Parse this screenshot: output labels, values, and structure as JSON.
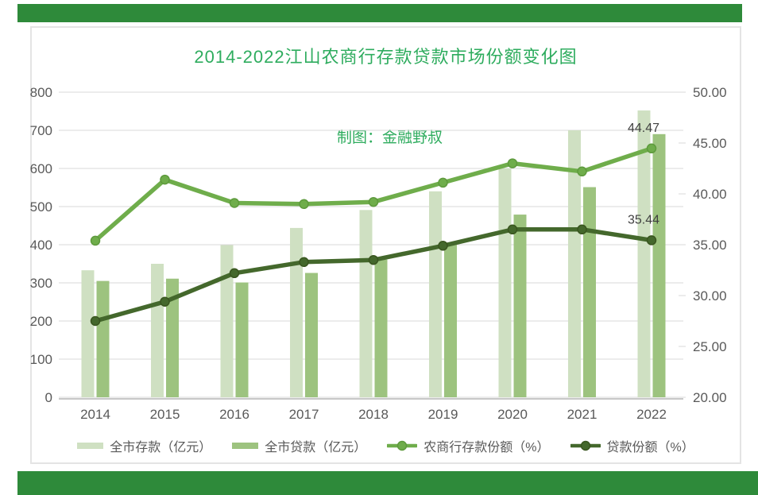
{
  "colors": {
    "banner": "#2e8a3a",
    "title": "#2eac5e",
    "card_border": "#e4e4e4",
    "gridline": "#d9d9d9",
    "axis_line": "#c8c8c8",
    "axis_text": "#595959",
    "data_label": "#404040"
  },
  "chart_data": {
    "type": "combo-bar-line",
    "title": "2014-2022江山农商行存款贷款市场份额变化图",
    "watermark": "制图：金融野叔",
    "categories": [
      "2014",
      "2015",
      "2016",
      "2017",
      "2018",
      "2019",
      "2020",
      "2021",
      "2022"
    ],
    "bar_series": [
      {
        "name": "全市存款（亿元）",
        "axis": "left",
        "color": "#cfe0c2",
        "values": [
          333,
          350,
          399,
          444,
          491,
          540,
          600,
          700,
          752
        ]
      },
      {
        "name": "全市贷款（亿元）",
        "axis": "left",
        "color": "#9dc37f",
        "values": [
          305,
          311,
          301,
          326,
          361,
          405,
          479,
          551,
          690
        ]
      }
    ],
    "line_series": [
      {
        "name": "农商行存款份额（%）",
        "axis": "right",
        "color": "#6fad4b",
        "marker_stroke": "#5e9a3d",
        "values": [
          35.4,
          41.4,
          39.1,
          39.0,
          39.2,
          41.1,
          43.0,
          42.2,
          44.47
        ]
      },
      {
        "name": "贷款份额（%）",
        "axis": "right",
        "color": "#44682c",
        "marker_stroke": "#39551f",
        "values": [
          27.5,
          29.4,
          32.2,
          33.3,
          33.5,
          34.9,
          36.5,
          36.5,
          35.44
        ]
      }
    ],
    "data_labels": [
      {
        "series_index": 0,
        "category_index": 8,
        "text": "44.47"
      },
      {
        "series_index": 1,
        "category_index": 8,
        "text": "35.44"
      }
    ],
    "left_axis": {
      "min": 0,
      "max": 800,
      "step": 100,
      "tick_labels": [
        "0",
        "100",
        "200",
        "300",
        "400",
        "500",
        "600",
        "700",
        "800"
      ]
    },
    "right_axis": {
      "min": 20,
      "max": 50,
      "step": 5,
      "tick_labels": [
        "20.00",
        "25.00",
        "30.00",
        "35.00",
        "40.00",
        "45.00",
        "50.00"
      ]
    },
    "legend_position": "bottom",
    "grid": "horizontal"
  }
}
